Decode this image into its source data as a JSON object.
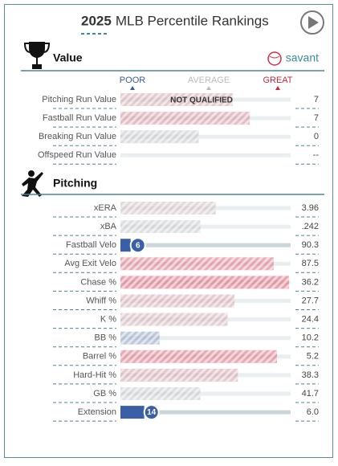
{
  "header": {
    "year": "2025",
    "title": "MLB Percentile Rankings"
  },
  "legend": {
    "poor": "POOR",
    "average": "AVERAGE",
    "great": "GREAT"
  },
  "sections": [
    {
      "title": "Value",
      "logo": "savant",
      "rows": [
        {
          "label": "Pitching Run Value",
          "percentile": 66,
          "value": "7",
          "note": "NOT QUALIFIED"
        },
        {
          "label": "Fastball Run Value",
          "percentile": 76,
          "value": "7"
        },
        {
          "label": "Breaking Run Value",
          "percentile": 46,
          "value": "0"
        },
        {
          "label": "Offspeed Run Value",
          "percentile": null,
          "value": "--"
        }
      ]
    },
    {
      "title": "Pitching",
      "rows": [
        {
          "label": "xERA",
          "percentile": 56,
          "value": "3.96"
        },
        {
          "label": "xBA",
          "percentile": 47,
          "value": ".242"
        },
        {
          "label": "Fastball Velo",
          "percentile": 6,
          "value": "90.3",
          "badge": true
        },
        {
          "label": "Avg Exit Velo",
          "percentile": 90,
          "value": "87.5"
        },
        {
          "label": "Chase %",
          "percentile": 99,
          "value": "36.2"
        },
        {
          "label": "Whiff %",
          "percentile": 67,
          "value": "27.7"
        },
        {
          "label": "K %",
          "percentile": 63,
          "value": "24.4"
        },
        {
          "label": "BB %",
          "percentile": 23,
          "value": "10.2"
        },
        {
          "label": "Barrel %",
          "percentile": 92,
          "value": "5.2"
        },
        {
          "label": "Hard-Hit %",
          "percentile": 69,
          "value": "38.3"
        },
        {
          "label": "GB %",
          "percentile": 47,
          "value": "41.7"
        },
        {
          "label": "Extension",
          "percentile": 14,
          "value": "6.0",
          "badge": true
        }
      ]
    }
  ]
}
